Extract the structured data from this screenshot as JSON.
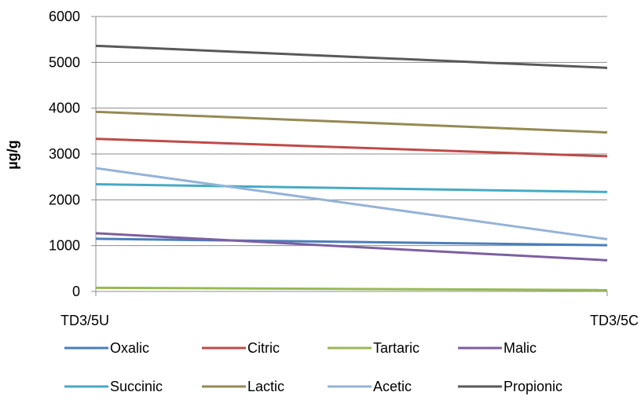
{
  "chart_data": {
    "type": "line",
    "categories": [
      "TD3/5U",
      "TD3/5C"
    ],
    "ylabel": "µg/g",
    "xlabel": "",
    "ylim": [
      0,
      6000
    ],
    "yticks": [
      "0",
      "1000",
      "2000",
      "3000",
      "4000",
      "5000",
      "6000"
    ],
    "grid": "horizontal",
    "legend_position": "bottom",
    "series": [
      {
        "name": "Oxalic",
        "color": "#4a7ebb",
        "values": [
          1150,
          1010
        ]
      },
      {
        "name": "Citric",
        "color": "#be4b48",
        "values": [
          3330,
          2950
        ]
      },
      {
        "name": "Tartaric",
        "color": "#98b954",
        "values": [
          80,
          30
        ]
      },
      {
        "name": "Malic",
        "color": "#7d5fa0",
        "values": [
          1270,
          680
        ]
      },
      {
        "name": "Succinic",
        "color": "#46aac5",
        "values": [
          2340,
          2170
        ]
      },
      {
        "name": "Lactic",
        "color": "#948a54",
        "values": [
          3920,
          3470
        ]
      },
      {
        "name": "Acetic",
        "color": "#95b3d7",
        "values": [
          2690,
          1140
        ]
      },
      {
        "name": "Propionic",
        "color": "#595959",
        "values": [
          5360,
          4880
        ]
      }
    ]
  }
}
